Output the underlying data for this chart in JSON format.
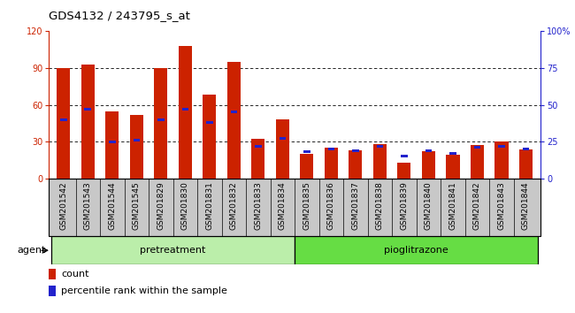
{
  "title": "GDS4132 / 243795_s_at",
  "samples": [
    "GSM201542",
    "GSM201543",
    "GSM201544",
    "GSM201545",
    "GSM201829",
    "GSM201830",
    "GSM201831",
    "GSM201832",
    "GSM201833",
    "GSM201834",
    "GSM201835",
    "GSM201836",
    "GSM201837",
    "GSM201838",
    "GSM201839",
    "GSM201840",
    "GSM201841",
    "GSM201842",
    "GSM201843",
    "GSM201844"
  ],
  "counts": [
    90,
    93,
    55,
    52,
    90,
    108,
    68,
    95,
    32,
    48,
    20,
    25,
    23,
    28,
    13,
    22,
    19,
    27,
    30,
    24
  ],
  "percentiles": [
    40,
    47,
    25,
    26,
    40,
    47,
    38,
    45,
    22,
    27,
    18,
    20,
    19,
    22,
    15,
    19,
    17,
    21,
    22,
    20
  ],
  "count_color": "#cc2200",
  "percentile_color": "#2222cc",
  "bar_width": 0.55,
  "ylim_left": [
    0,
    120
  ],
  "ylim_right": [
    0,
    100
  ],
  "yticks_left": [
    0,
    30,
    60,
    90,
    120
  ],
  "yticks_right": [
    0,
    25,
    50,
    75,
    100
  ],
  "grid_values": [
    30,
    60,
    90
  ],
  "n_pretreatment": 10,
  "group1_label": "pretreatment",
  "group2_label": "pioglitrazone",
  "agent_label": "agent",
  "legend_count": "count",
  "legend_pct": "percentile rank within the sample",
  "group1_color": "#bbeeaa",
  "group2_color": "#66dd44",
  "xticklabel_bg": "#c8c8c8",
  "title_fontsize": 9.5,
  "tick_fontsize": 6.5,
  "bar_label_fontsize": 8
}
